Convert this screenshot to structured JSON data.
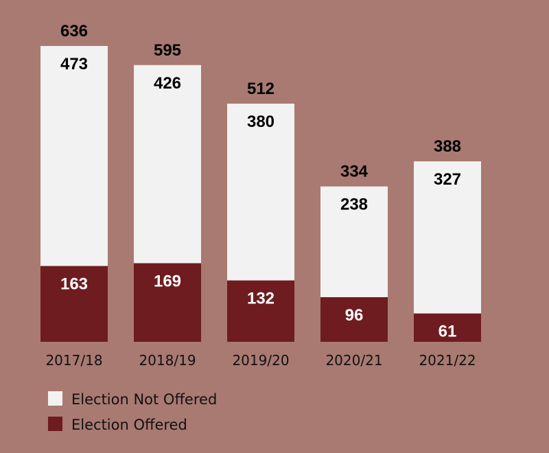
{
  "chart_data": {
    "type": "bar",
    "stacked": true,
    "categories": [
      "2017/18",
      "2018/19",
      "2019/20",
      "2020/21",
      "2021/22"
    ],
    "series": [
      {
        "name": "Election Offered",
        "values": [
          163,
          169,
          132,
          96,
          61
        ],
        "color": "#6e1c1f"
      },
      {
        "name": "Election Not Offered",
        "values": [
          473,
          426,
          380,
          238,
          327
        ],
        "color": "#f2f2f2"
      }
    ],
    "totals": [
      636,
      595,
      512,
      334,
      388
    ],
    "ylim": [
      0,
      636
    ],
    "grid": false,
    "legend_position": "bottom-left"
  },
  "colors": {
    "background": "#a97a71",
    "offered": "#6e1c1f",
    "not_offered": "#f2f2f2"
  }
}
